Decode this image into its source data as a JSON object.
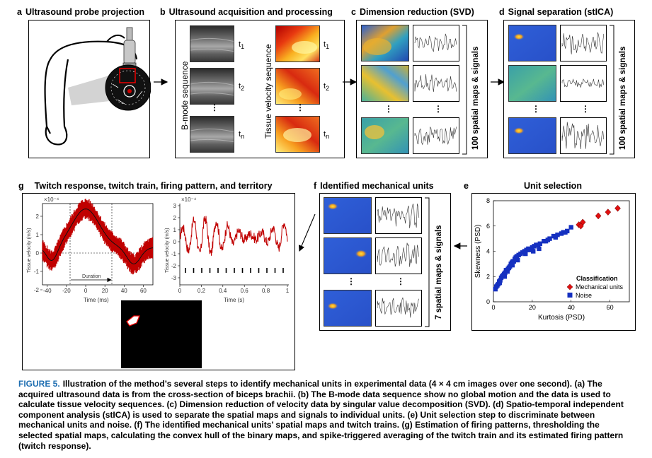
{
  "panels": {
    "a": {
      "letter": "a",
      "title": "Ultrasound probe projection"
    },
    "b": {
      "letter": "b",
      "title": "Ultrasound acquisition and processing",
      "bmode_label": "B-mode sequence",
      "velocity_label": "Tissue velocity sequence",
      "frames": [
        "t",
        "t",
        "t"
      ],
      "frame_subs": [
        "1",
        "2",
        "n"
      ]
    },
    "c": {
      "letter": "c",
      "title": "Dimension reduction (SVD)",
      "side_label": "100 spatial maps & signals"
    },
    "d": {
      "letter": "d",
      "title": "Signal separation (stICA)",
      "side_label": "100 spatial maps & signals"
    },
    "e": {
      "letter": "e",
      "title": "Unit selection",
      "xlabel": "Kurtosis (PSD)",
      "ylabel": "Skewness (PSD)",
      "legend_title": "Classification",
      "legend_items": [
        "Mechanical units",
        "Noise"
      ]
    },
    "f": {
      "letter": "f",
      "title": "Identified mechanical units",
      "side_label": "7 spatial maps & signals"
    },
    "g": {
      "letter": "g",
      "title": "Twitch response, twitch train, firing pattern, and territory",
      "left_plot": {
        "scale": "×10⁻⁴",
        "ylabel": "Tissue velocity (m/s)",
        "xlabel": "Time (ms)",
        "duration_label": "Duration",
        "xticks": [
          "-40",
          "-20",
          "0",
          "20",
          "40",
          "60"
        ],
        "yticks": [
          "2",
          "1",
          "0",
          "-1",
          "-2"
        ]
      },
      "right_plot": {
        "scale": "×10⁻⁴",
        "ylabel": "Tissue velocity (m/s)",
        "xlabel": "Time (s)",
        "xticks": [
          "0",
          "0.2",
          "0.4",
          "0.6",
          "0.8",
          "1"
        ],
        "yticks": [
          "3",
          "2",
          "1",
          "0",
          "-1",
          "-2",
          "-3"
        ]
      }
    }
  },
  "chart_data": {
    "type": "scatter",
    "title": "Unit selection",
    "xlabel": "Kurtosis (PSD)",
    "ylabel": "Skewness (PSD)",
    "xlim": [
      0,
      70
    ],
    "ylim": [
      0,
      8
    ],
    "xticks": [
      0,
      20,
      40,
      60
    ],
    "yticks": [
      0,
      2,
      4,
      6,
      8
    ],
    "legend_placement": "bottom-right",
    "series": [
      {
        "name": "Mechanical units",
        "marker": "diamond",
        "color": "#e01010",
        "x": [
          44,
          46,
          45,
          54,
          59,
          64
        ],
        "y": [
          6.1,
          6.3,
          6.0,
          6.8,
          7.1,
          7.4
        ]
      },
      {
        "name": "Noise",
        "marker": "square",
        "color": "#1530c0",
        "x": [
          1,
          2,
          2.5,
          3,
          3.5,
          4,
          4.5,
          5,
          5.5,
          6,
          6.5,
          7,
          7.5,
          8,
          8.5,
          9,
          9.5,
          10,
          10.5,
          11,
          11.5,
          12,
          13,
          14,
          15,
          16,
          17,
          18,
          19,
          20,
          21,
          22,
          23,
          24,
          26,
          27,
          29,
          31,
          33,
          35,
          36,
          38,
          40,
          1.5,
          3.2,
          5.8,
          7.2,
          9.8,
          12.5,
          16.5,
          20.5,
          23.5,
          28,
          32,
          37
        ],
        "y": [
          1.0,
          1.3,
          1.4,
          1.6,
          1.7,
          1.9,
          2.0,
          2.1,
          2.2,
          2.3,
          2.5,
          2.5,
          2.6,
          2.7,
          2.8,
          3.0,
          3.1,
          3.2,
          3.2,
          3.4,
          3.5,
          3.6,
          3.7,
          3.8,
          3.9,
          4.0,
          4.1,
          4.2,
          4.1,
          4.3,
          4.4,
          4.5,
          4.5,
          4.6,
          4.8,
          4.8,
          5.0,
          5.2,
          5.3,
          5.4,
          5.5,
          5.6,
          5.9,
          1.2,
          1.5,
          2.0,
          2.4,
          2.9,
          3.3,
          3.8,
          4.0,
          4.2,
          4.9,
          5.1,
          5.5
        ]
      }
    ]
  },
  "caption": {
    "label": "FIGURE 5.",
    "text": "Illustration of the method’s several steps to identify mechanical units in experimental data (4 × 4 cm images over one second). (a) The acquired ultrasound data is from the cross-section of biceps brachii. (b) The B-mode data sequence show no global motion and the data is used to calculate tissue velocity sequences. (c) Dimension reduction of velocity data by singular value decomposition (SVD). (d) Spatio-temporal independent component analysis (stICA) is used to separate the spatial maps and signals to individual units. (e) Unit selection step to discriminate between mechanical units and noise. (f) The identified mechanical units’ spatial maps and twitch trains. (g) Estimation of firing patterns, thresholding the selected spatial maps, calculating the convex hull of the binary maps, and spike-triggered averaging of the twitch train and its estimated firing pattern (twitch response)."
  },
  "colors": {
    "caption_label": "#1f6fb2",
    "mech": "#e01010",
    "noise": "#1530c0",
    "twitch": "#c00000"
  },
  "icons": {
    "ellipsis": "⋮"
  }
}
